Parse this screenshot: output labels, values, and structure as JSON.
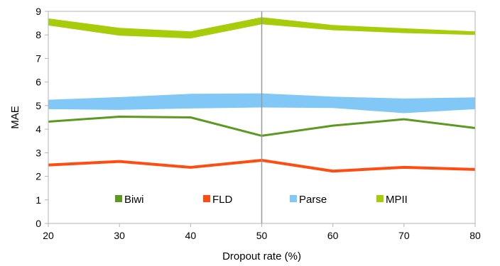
{
  "chart_data": {
    "type": "line",
    "xlabel": "Dropout rate (%)",
    "ylabel": "MAE",
    "x": [
      20,
      30,
      40,
      50,
      60,
      70,
      80
    ],
    "xlim": [
      20,
      80
    ],
    "ylim": [
      0,
      9
    ],
    "y_ticks": [
      0,
      1,
      2,
      3,
      4,
      5,
      6,
      7,
      8,
      9
    ],
    "grid": false,
    "reference_line_x": 50,
    "legend_position": "bottom-inside",
    "series": [
      {
        "name": "Biwi",
        "color": "#5b9a21",
        "style": "line",
        "values": [
          4.32,
          4.53,
          4.5,
          3.72,
          4.15,
          4.42,
          4.05
        ]
      },
      {
        "name": "FLD",
        "color": "#ff4d11",
        "style": "line",
        "values": [
          2.48,
          2.63,
          2.38,
          2.68,
          2.22,
          2.38,
          2.29
        ]
      },
      {
        "name": "Parse",
        "color": "#82c8f6",
        "style": "band",
        "lower": [
          4.85,
          4.82,
          4.88,
          4.92,
          4.9,
          4.68,
          4.85
        ],
        "upper": [
          5.25,
          5.36,
          5.5,
          5.52,
          5.38,
          5.3,
          5.35
        ]
      },
      {
        "name": "MPII",
        "color": "#a6cc0a",
        "style": "band",
        "lower": [
          8.4,
          7.97,
          7.85,
          8.45,
          8.2,
          8.08,
          8.0
        ],
        "upper": [
          8.7,
          8.3,
          8.15,
          8.75,
          8.42,
          8.28,
          8.15
        ]
      }
    ]
  }
}
